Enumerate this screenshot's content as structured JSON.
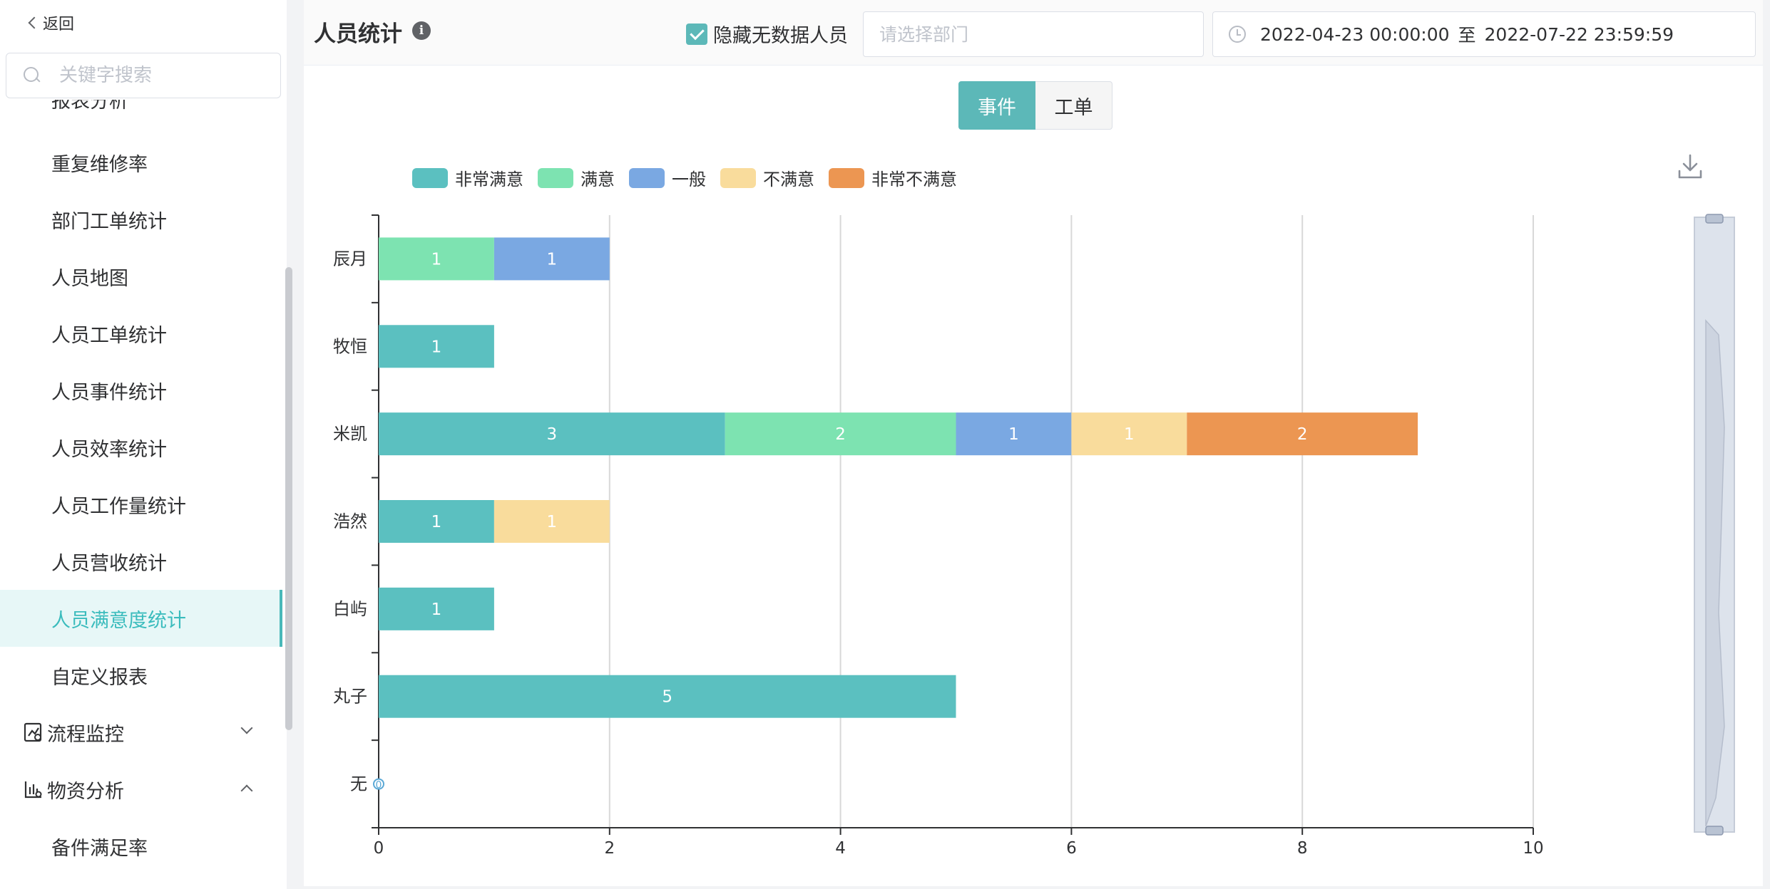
{
  "sidebar": {
    "back_label": "返回",
    "search_placeholder": "关键字搜索",
    "cut_item": "报表分析",
    "items": [
      {
        "label": "重复维修率"
      },
      {
        "label": "部门工单统计"
      },
      {
        "label": "人员地图"
      },
      {
        "label": "人员工单统计"
      },
      {
        "label": "人员事件统计"
      },
      {
        "label": "人员效率统计"
      },
      {
        "label": "人员工作量统计"
      },
      {
        "label": "人员营收统计"
      },
      {
        "label": "人员满意度统计",
        "active": true
      },
      {
        "label": "自定义报表"
      }
    ],
    "groups": [
      {
        "label": "流程监控",
        "expanded": false,
        "icon": "process-monitor-icon"
      },
      {
        "label": "物资分析",
        "expanded": true,
        "icon": "material-analysis-icon"
      }
    ],
    "sub_items": [
      {
        "label": "备件满足率"
      }
    ]
  },
  "header": {
    "title": "人员统计",
    "hide_checkbox_label": "隐藏无数据人员",
    "hide_checked": true,
    "dept_placeholder": "请选择部门",
    "date_start": "2022-04-23 00:00:00",
    "date_sep": "至",
    "date_end": "2022-07-22 23:59:59"
  },
  "tabs": [
    {
      "label": "事件",
      "active": true
    },
    {
      "label": "工单",
      "active": false
    }
  ],
  "colors": {
    "accent": "#5cb8b8",
    "series": [
      "#5bc0c0",
      "#7de3b1",
      "#7aa8e2",
      "#f9dc9c",
      "#ec9652"
    ]
  },
  "chart_data": {
    "type": "bar",
    "orientation": "horizontal",
    "stacked": true,
    "categories": [
      "辰月",
      "牧恒",
      "米凯",
      "浩然",
      "白屿",
      "丸子",
      "无"
    ],
    "series": [
      {
        "name": "非常满意",
        "values": [
          0,
          1,
          3,
          1,
          1,
          5,
          0
        ]
      },
      {
        "name": "满意",
        "values": [
          1,
          0,
          2,
          0,
          0,
          0,
          0
        ]
      },
      {
        "name": "一般",
        "values": [
          1,
          0,
          1,
          0,
          0,
          0,
          0
        ]
      },
      {
        "name": "不满意",
        "values": [
          0,
          0,
          1,
          1,
          0,
          0,
          0
        ]
      },
      {
        "name": "非常不满意",
        "values": [
          0,
          0,
          2,
          0,
          0,
          0,
          0
        ]
      }
    ],
    "xlim": [
      0,
      10
    ],
    "xticks": [
      0,
      2,
      4,
      6,
      8,
      10
    ],
    "zero_label": "0",
    "legend_position": "top-left",
    "grid": true,
    "datazoom": true
  }
}
